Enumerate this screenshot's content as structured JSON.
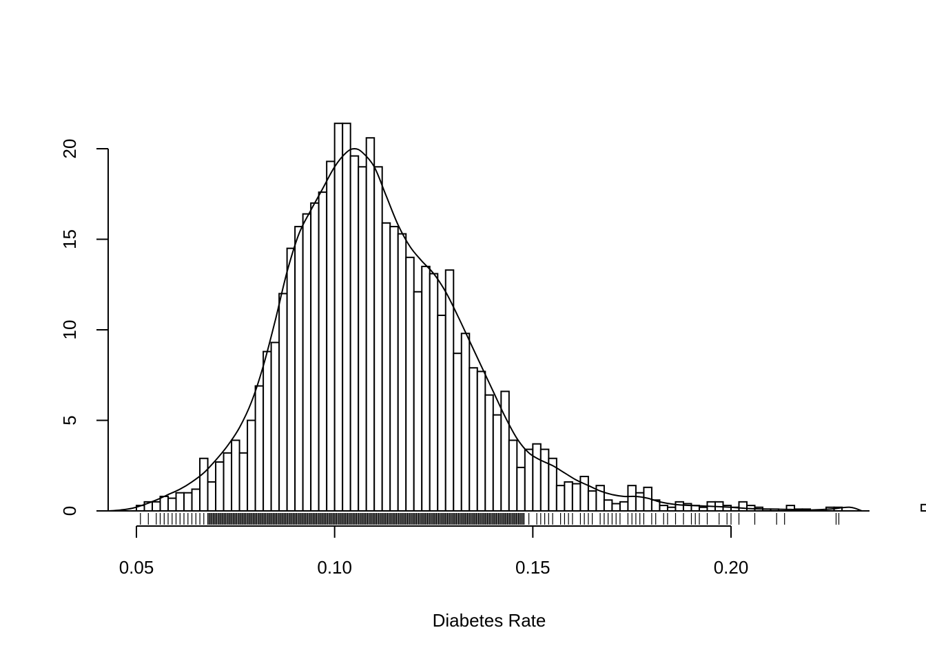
{
  "chart_data": {
    "type": "bar",
    "subtype": "histogram-with-density-and-rug",
    "title": "",
    "xlabel": "Diabetes Rate",
    "ylabel": "",
    "xlim": [
      0.043,
      0.233
    ],
    "ylim": [
      0,
      21.5
    ],
    "bin_width": 0.002,
    "bin_start": 0.05,
    "x_ticks": [
      0.05,
      0.1,
      0.15,
      0.2
    ],
    "x_tick_labels": [
      "0.05",
      "0.10",
      "0.15",
      "0.20"
    ],
    "y_ticks": [
      0,
      5,
      10,
      15,
      20
    ],
    "y_tick_labels": [
      "0",
      "5",
      "10",
      "15",
      "20"
    ],
    "grid": false,
    "legend": "none",
    "bars": [
      0.3,
      0.5,
      0.5,
      0.8,
      0.7,
      1.0,
      1.0,
      1.2,
      2.9,
      1.6,
      2.7,
      3.2,
      3.9,
      3.2,
      5.0,
      6.9,
      8.8,
      9.3,
      12.0,
      14.5,
      15.7,
      16.4,
      17.0,
      17.6,
      19.3,
      21.4,
      21.4,
      19.6,
      19.0,
      20.6,
      19.0,
      15.9,
      15.7,
      15.3,
      14.0,
      12.1,
      13.5,
      13.1,
      10.8,
      13.3,
      8.7,
      9.8,
      7.9,
      7.7,
      6.4,
      5.3,
      6.6,
      3.9,
      2.4,
      3.4,
      3.7,
      3.4,
      2.9,
      1.4,
      1.6,
      1.5,
      1.9,
      1.1,
      1.4,
      0.6,
      0.4,
      0.5,
      1.4,
      1.0,
      1.3,
      0.6,
      0.3,
      0.2,
      0.5,
      0.4,
      0.3,
      0.2,
      0.5,
      0.5,
      0.3,
      0.2,
      0.5,
      0.3,
      0.2,
      0.1,
      0.1,
      0.0,
      0.3,
      0.1,
      0.1,
      0.0,
      0.0,
      0.2,
      0.2,
      0.0,
      0.0,
      0.0,
      0.0,
      0.0,
      0.0,
      0.0,
      0.0,
      0.0,
      0.0,
      0.35
    ],
    "density": {
      "x": [
        0.043,
        0.046,
        0.049,
        0.052,
        0.055,
        0.058,
        0.061,
        0.064,
        0.067,
        0.07,
        0.073,
        0.076,
        0.079,
        0.082,
        0.085,
        0.088,
        0.091,
        0.094,
        0.097,
        0.1,
        0.103,
        0.105,
        0.107,
        0.11,
        0.113,
        0.116,
        0.119,
        0.122,
        0.125,
        0.128,
        0.131,
        0.134,
        0.137,
        0.14,
        0.143,
        0.146,
        0.149,
        0.152,
        0.155,
        0.158,
        0.161,
        0.164,
        0.167,
        0.17,
        0.173,
        0.176,
        0.179,
        0.182,
        0.186,
        0.19,
        0.195,
        0.2,
        0.205,
        0.21,
        0.215,
        0.22,
        0.225,
        0.23,
        0.233
      ],
      "y": [
        0.0,
        0.05,
        0.15,
        0.35,
        0.6,
        0.9,
        1.2,
        1.6,
        2.1,
        2.8,
        3.6,
        4.6,
        6.0,
        8.0,
        10.5,
        13.2,
        15.3,
        16.6,
        17.8,
        19.0,
        19.8,
        20.0,
        19.8,
        19.0,
        17.4,
        15.8,
        14.6,
        13.8,
        13.1,
        12.1,
        10.8,
        9.4,
        8.0,
        6.6,
        5.2,
        4.0,
        3.2,
        2.8,
        2.5,
        2.1,
        1.7,
        1.4,
        1.1,
        0.9,
        0.8,
        0.8,
        0.7,
        0.5,
        0.35,
        0.3,
        0.25,
        0.2,
        0.12,
        0.1,
        0.08,
        0.05,
        0.1,
        0.2,
        0.0
      ]
    },
    "rug_dense_range": [
      0.068,
      0.148
    ],
    "rug_sparse": [
      0.051,
      0.053,
      0.055,
      0.056,
      0.057,
      0.058,
      0.059,
      0.06,
      0.061,
      0.062,
      0.063,
      0.064,
      0.065,
      0.066,
      0.067,
      0.149,
      0.151,
      0.152,
      0.153,
      0.154,
      0.155,
      0.157,
      0.158,
      0.159,
      0.16,
      0.162,
      0.163,
      0.164,
      0.165,
      0.167,
      0.168,
      0.169,
      0.17,
      0.171,
      0.172,
      0.174,
      0.175,
      0.176,
      0.177,
      0.178,
      0.18,
      0.181,
      0.183,
      0.184,
      0.186,
      0.188,
      0.19,
      0.191,
      0.192,
      0.194,
      0.197,
      0.199,
      0.2,
      0.202,
      0.206,
      0.2115,
      0.2135,
      0.2265,
      0.2272
    ]
  }
}
